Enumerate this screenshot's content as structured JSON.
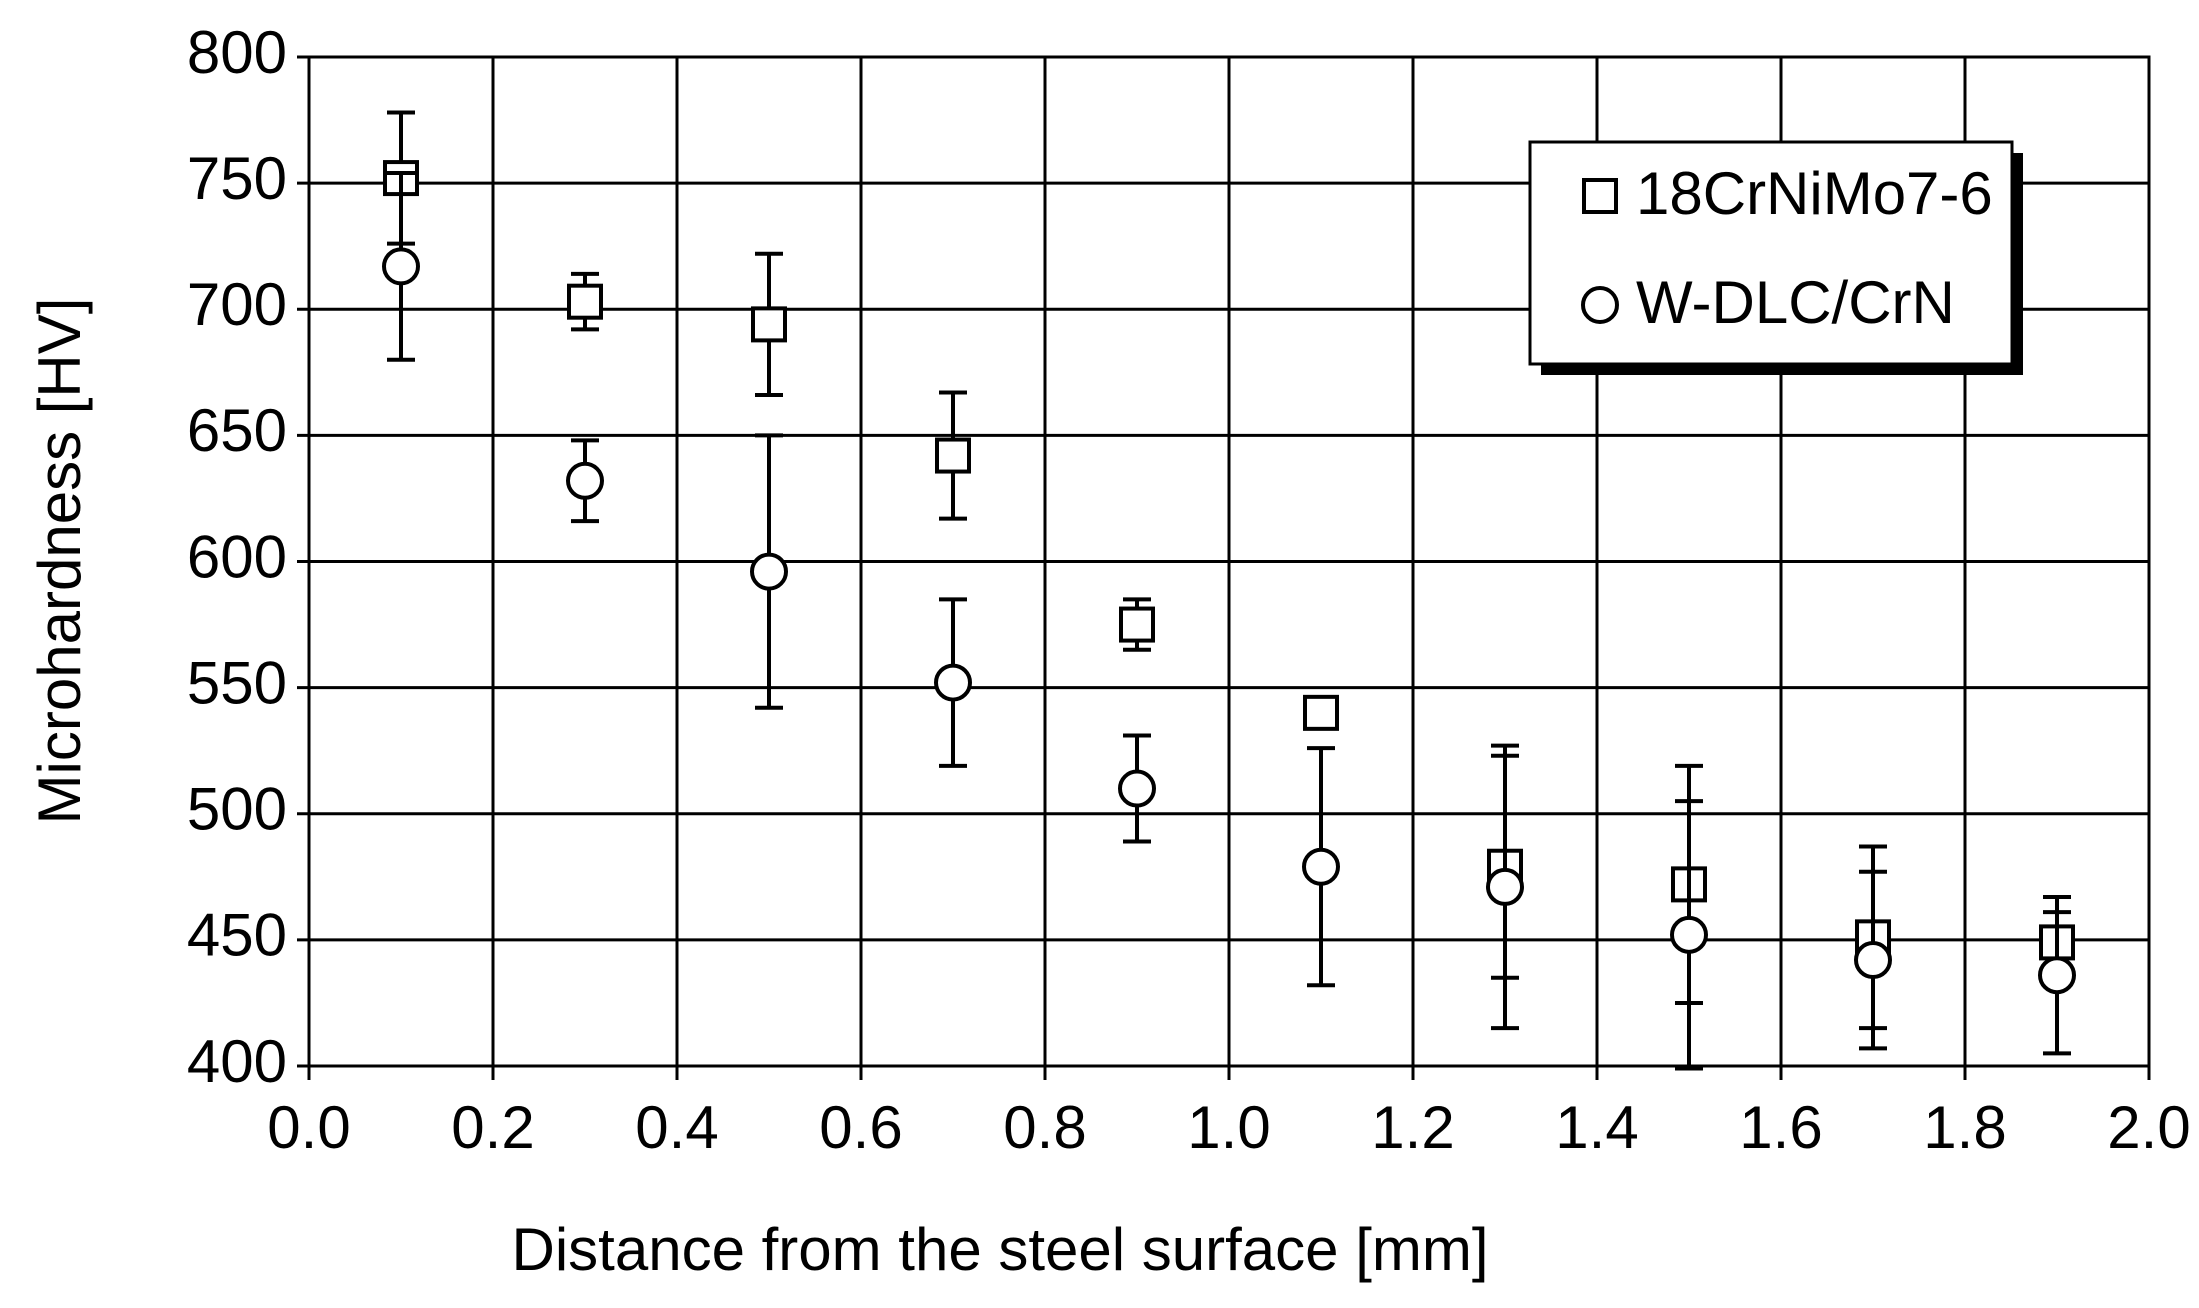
{
  "chart_data": {
    "type": "scatter",
    "x_label": "Distance from the steel surface [mm]",
    "y_label": "Microhardness [HV]",
    "x": [
      0.1,
      0.3,
      0.5,
      0.7,
      0.9,
      1.1,
      1.3,
      1.5,
      1.7,
      1.9
    ],
    "series": [
      {
        "name": "18CrNiMo7-6",
        "marker": "square",
        "color": "#000000",
        "values": [
          752,
          703,
          694,
          642,
          575,
          540,
          479,
          472,
          451,
          449
        ],
        "errors": [
          26,
          11,
          28,
          25,
          10,
          5,
          44,
          47,
          36,
          12
        ]
      },
      {
        "name": "W-DLC/CrN",
        "marker": "circle",
        "color": "#000000",
        "values": [
          717,
          632,
          596,
          552,
          510,
          479,
          471,
          452,
          442,
          436
        ],
        "errors": [
          37,
          16,
          54,
          33,
          21,
          47,
          56,
          53,
          35,
          31
        ]
      }
    ],
    "xlim": [
      0,
      2
    ],
    "xticks": [
      {
        "value": 0,
        "label": "0.0"
      },
      {
        "value": 0.2,
        "label": "0.2"
      },
      {
        "value": 0.4,
        "label": "0.4"
      },
      {
        "value": 0.6,
        "label": "0.6"
      },
      {
        "value": 0.8,
        "label": "0.8"
      },
      {
        "value": 1,
        "label": "1.0"
      },
      {
        "value": 1.2,
        "label": "1.2"
      },
      {
        "value": 1.4,
        "label": "1.4"
      },
      {
        "value": 1.6,
        "label": "1.6"
      },
      {
        "value": 1.8,
        "label": "1.8"
      },
      {
        "value": 2,
        "label": "2.0"
      }
    ],
    "ylim": [
      400,
      800
    ],
    "yticks": [
      400,
      450,
      500,
      550,
      600,
      650,
      700,
      750,
      800
    ],
    "grid": true,
    "legend": "upper right"
  }
}
